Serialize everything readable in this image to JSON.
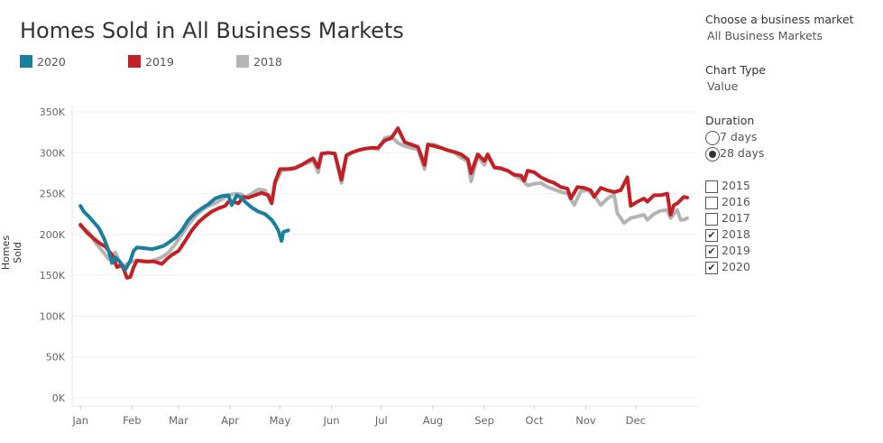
{
  "title": "Homes Sold in All Business Markets",
  "legend": [
    {
      "label": "2020",
      "color": "#1a7f9e"
    },
    {
      "label": "2019",
      "color": "#c32026"
    },
    {
      "label": "2018",
      "color": "#b4b4b4"
    }
  ],
  "filters": {
    "market_heading": "Choose a business market",
    "market_value": "All Business Markets",
    "chart_type_heading": "Chart Type",
    "chart_type_value": "Value",
    "duration_heading": "Duration",
    "duration_options": [
      {
        "label": "7 days",
        "selected": false
      },
      {
        "label": "28 days",
        "selected": true
      }
    ],
    "years": [
      {
        "label": "2015",
        "checked": false
      },
      {
        "label": "2016",
        "checked": false
      },
      {
        "label": "2017",
        "checked": false
      },
      {
        "label": "2018",
        "checked": true
      },
      {
        "label": "2019",
        "checked": true
      },
      {
        "label": "2020",
        "checked": true
      }
    ],
    "check_glyph": "✔"
  },
  "chart_data": {
    "type": "line",
    "title": "Homes Sold in All Business Markets",
    "xlabel": "",
    "ylabel": "Homes Sold",
    "ylim": [
      0,
      350000
    ],
    "yticks": [
      0,
      50000,
      100000,
      150000,
      200000,
      250000,
      300000,
      350000
    ],
    "ytick_labels": [
      "0K",
      "50K",
      "100K",
      "150K",
      "200K",
      "250K",
      "300K",
      "350K"
    ],
    "xticks": [
      1,
      32,
      60,
      91,
      121,
      152,
      182,
      213,
      244,
      274,
      305,
      335
    ],
    "xtick_labels": [
      "Jan",
      "Feb",
      "Mar",
      "Apr",
      "May",
      "Jun",
      "Jul",
      "Aug",
      "Sep",
      "Oct",
      "Nov",
      "Dec"
    ],
    "xlim": [
      -4,
      372
    ],
    "x_unit": "day of year",
    "grid": true,
    "legend_position": "top-left",
    "series": [
      {
        "name": "2018",
        "color": "#b4b4b4",
        "points": [
          [
            1,
            210000
          ],
          [
            6,
            203000
          ],
          [
            10,
            190000
          ],
          [
            14,
            180000
          ],
          [
            18,
            170000
          ],
          [
            22,
            178000
          ],
          [
            26,
            160000
          ],
          [
            30,
            165000
          ],
          [
            34,
            168000
          ],
          [
            38,
            167000
          ],
          [
            42,
            166000
          ],
          [
            46,
            169000
          ],
          [
            50,
            172000
          ],
          [
            54,
            178000
          ],
          [
            58,
            188000
          ],
          [
            62,
            200000
          ],
          [
            66,
            212000
          ],
          [
            70,
            222000
          ],
          [
            74,
            230000
          ],
          [
            78,
            235000
          ],
          [
            82,
            238000
          ],
          [
            86,
            243000
          ],
          [
            90,
            248000
          ],
          [
            94,
            250000
          ],
          [
            98,
            249000
          ],
          [
            100,
            245000
          ],
          [
            104,
            250000
          ],
          [
            108,
            255000
          ],
          [
            112,
            254000
          ],
          [
            116,
            238000
          ],
          [
            118,
            262000
          ],
          [
            122,
            278000
          ],
          [
            126,
            280000
          ],
          [
            130,
            282000
          ],
          [
            134,
            285000
          ],
          [
            138,
            288000
          ],
          [
            141,
            290000
          ],
          [
            144,
            276000
          ],
          [
            146,
            298000
          ],
          [
            150,
            300000
          ],
          [
            154,
            299000
          ],
          [
            158,
            263000
          ],
          [
            161,
            296000
          ],
          [
            164,
            300000
          ],
          [
            168,
            303000
          ],
          [
            172,
            305000
          ],
          [
            176,
            306000
          ],
          [
            180,
            304000
          ],
          [
            184,
            318000
          ],
          [
            188,
            320000
          ],
          [
            192,
            312000
          ],
          [
            196,
            308000
          ],
          [
            200,
            306000
          ],
          [
            204,
            304000
          ],
          [
            208,
            280000
          ],
          [
            210,
            310000
          ],
          [
            214,
            310000
          ],
          [
            218,
            306000
          ],
          [
            222,
            303000
          ],
          [
            226,
            300000
          ],
          [
            230,
            294000
          ],
          [
            234,
            289000
          ],
          [
            236,
            265000
          ],
          [
            240,
            296000
          ],
          [
            244,
            285000
          ],
          [
            246,
            296000
          ],
          [
            250,
            282000
          ],
          [
            254,
            280000
          ],
          [
            258,
            278000
          ],
          [
            262,
            272000
          ],
          [
            266,
            268000
          ],
          [
            270,
            260000
          ],
          [
            274,
            262000
          ],
          [
            278,
            263000
          ],
          [
            282,
            258000
          ],
          [
            286,
            255000
          ],
          [
            290,
            252000
          ],
          [
            294,
            250000
          ],
          [
            298,
            236000
          ],
          [
            302,
            253000
          ],
          [
            306,
            254000
          ],
          [
            310,
            248000
          ],
          [
            314,
            236000
          ],
          [
            318,
            244000
          ],
          [
            322,
            249000
          ],
          [
            324,
            226000
          ],
          [
            328,
            214000
          ],
          [
            332,
            220000
          ],
          [
            336,
            222000
          ],
          [
            340,
            224000
          ],
          [
            342,
            218000
          ],
          [
            346,
            225000
          ],
          [
            350,
            229000
          ],
          [
            354,
            230000
          ],
          [
            356,
            220000
          ],
          [
            360,
            230000
          ],
          [
            362,
            218000
          ],
          [
            364,
            218000
          ],
          [
            366,
            220000
          ]
        ]
      },
      {
        "name": "2019",
        "color": "#c32026",
        "points": [
          [
            1,
            212000
          ],
          [
            5,
            202000
          ],
          [
            9,
            195000
          ],
          [
            12,
            190000
          ],
          [
            16,
            185000
          ],
          [
            20,
            175000
          ],
          [
            23,
            160000
          ],
          [
            26,
            163000
          ],
          [
            29,
            147000
          ],
          [
            31,
            148000
          ],
          [
            33,
            160000
          ],
          [
            35,
            168000
          ],
          [
            40,
            167000
          ],
          [
            45,
            167000
          ],
          [
            50,
            164000
          ],
          [
            53,
            170000
          ],
          [
            56,
            175000
          ],
          [
            60,
            180000
          ],
          [
            64,
            192000
          ],
          [
            68,
            205000
          ],
          [
            72,
            215000
          ],
          [
            76,
            222000
          ],
          [
            80,
            228000
          ],
          [
            84,
            232000
          ],
          [
            88,
            235000
          ],
          [
            90,
            240000
          ],
          [
            93,
            240000
          ],
          [
            96,
            238000
          ],
          [
            99,
            246000
          ],
          [
            102,
            245000
          ],
          [
            106,
            248000
          ],
          [
            110,
            251000
          ],
          [
            114,
            248000
          ],
          [
            116,
            238000
          ],
          [
            118,
            264000
          ],
          [
            121,
            280000
          ],
          [
            126,
            280000
          ],
          [
            130,
            281000
          ],
          [
            134,
            285000
          ],
          [
            138,
            290000
          ],
          [
            141,
            293000
          ],
          [
            144,
            282000
          ],
          [
            146,
            299000
          ],
          [
            150,
            300000
          ],
          [
            154,
            299000
          ],
          [
            158,
            267000
          ],
          [
            161,
            297000
          ],
          [
            164,
            300000
          ],
          [
            168,
            303000
          ],
          [
            172,
            305000
          ],
          [
            176,
            306000
          ],
          [
            180,
            306000
          ],
          [
            184,
            315000
          ],
          [
            188,
            318000
          ],
          [
            192,
            330000
          ],
          [
            196,
            313000
          ],
          [
            200,
            310000
          ],
          [
            204,
            307000
          ],
          [
            208,
            285000
          ],
          [
            210,
            310000
          ],
          [
            214,
            308000
          ],
          [
            218,
            306000
          ],
          [
            222,
            303000
          ],
          [
            226,
            301000
          ],
          [
            230,
            298000
          ],
          [
            234,
            292000
          ],
          [
            236,
            275000
          ],
          [
            240,
            298000
          ],
          [
            244,
            290000
          ],
          [
            246,
            298000
          ],
          [
            250,
            282000
          ],
          [
            254,
            281000
          ],
          [
            258,
            278000
          ],
          [
            262,
            273000
          ],
          [
            266,
            272000
          ],
          [
            268,
            266000
          ],
          [
            270,
            278000
          ],
          [
            274,
            276000
          ],
          [
            278,
            270000
          ],
          [
            282,
            266000
          ],
          [
            286,
            263000
          ],
          [
            290,
            258000
          ],
          [
            294,
            256000
          ],
          [
            296,
            244000
          ],
          [
            300,
            258000
          ],
          [
            304,
            257000
          ],
          [
            308,
            254000
          ],
          [
            310,
            246000
          ],
          [
            314,
            257000
          ],
          [
            318,
            254000
          ],
          [
            322,
            252000
          ],
          [
            326,
            254000
          ],
          [
            330,
            270000
          ],
          [
            332,
            235000
          ],
          [
            336,
            240000
          ],
          [
            340,
            244000
          ],
          [
            342,
            240000
          ],
          [
            346,
            248000
          ],
          [
            350,
            248000
          ],
          [
            354,
            250000
          ],
          [
            356,
            224000
          ],
          [
            358,
            236000
          ],
          [
            360,
            238000
          ],
          [
            364,
            246000
          ],
          [
            366,
            245000
          ]
        ]
      },
      {
        "name": "2020",
        "color": "#1a7f9e",
        "points": [
          [
            1,
            235000
          ],
          [
            3,
            228000
          ],
          [
            6,
            222000
          ],
          [
            9,
            215000
          ],
          [
            12,
            208000
          ],
          [
            15,
            196000
          ],
          [
            18,
            180000
          ],
          [
            20,
            165000
          ],
          [
            22,
            172000
          ],
          [
            25,
            166000
          ],
          [
            28,
            157000
          ],
          [
            31,
            168000
          ],
          [
            33,
            180000
          ],
          [
            35,
            184000
          ],
          [
            40,
            183000
          ],
          [
            44,
            182000
          ],
          [
            48,
            184000
          ],
          [
            51,
            186000
          ],
          [
            54,
            190000
          ],
          [
            58,
            196000
          ],
          [
            62,
            205000
          ],
          [
            66,
            218000
          ],
          [
            70,
            226000
          ],
          [
            74,
            232000
          ],
          [
            78,
            237000
          ],
          [
            82,
            244000
          ],
          [
            86,
            247000
          ],
          [
            90,
            248000
          ],
          [
            92,
            236000
          ],
          [
            95,
            248000
          ],
          [
            98,
            245000
          ],
          [
            100,
            240000
          ],
          [
            104,
            233000
          ],
          [
            108,
            228000
          ],
          [
            112,
            225000
          ],
          [
            116,
            218000
          ],
          [
            118,
            212000
          ],
          [
            120,
            205000
          ],
          [
            122,
            192000
          ],
          [
            123,
            203000
          ],
          [
            126,
            205000
          ]
        ]
      }
    ]
  }
}
